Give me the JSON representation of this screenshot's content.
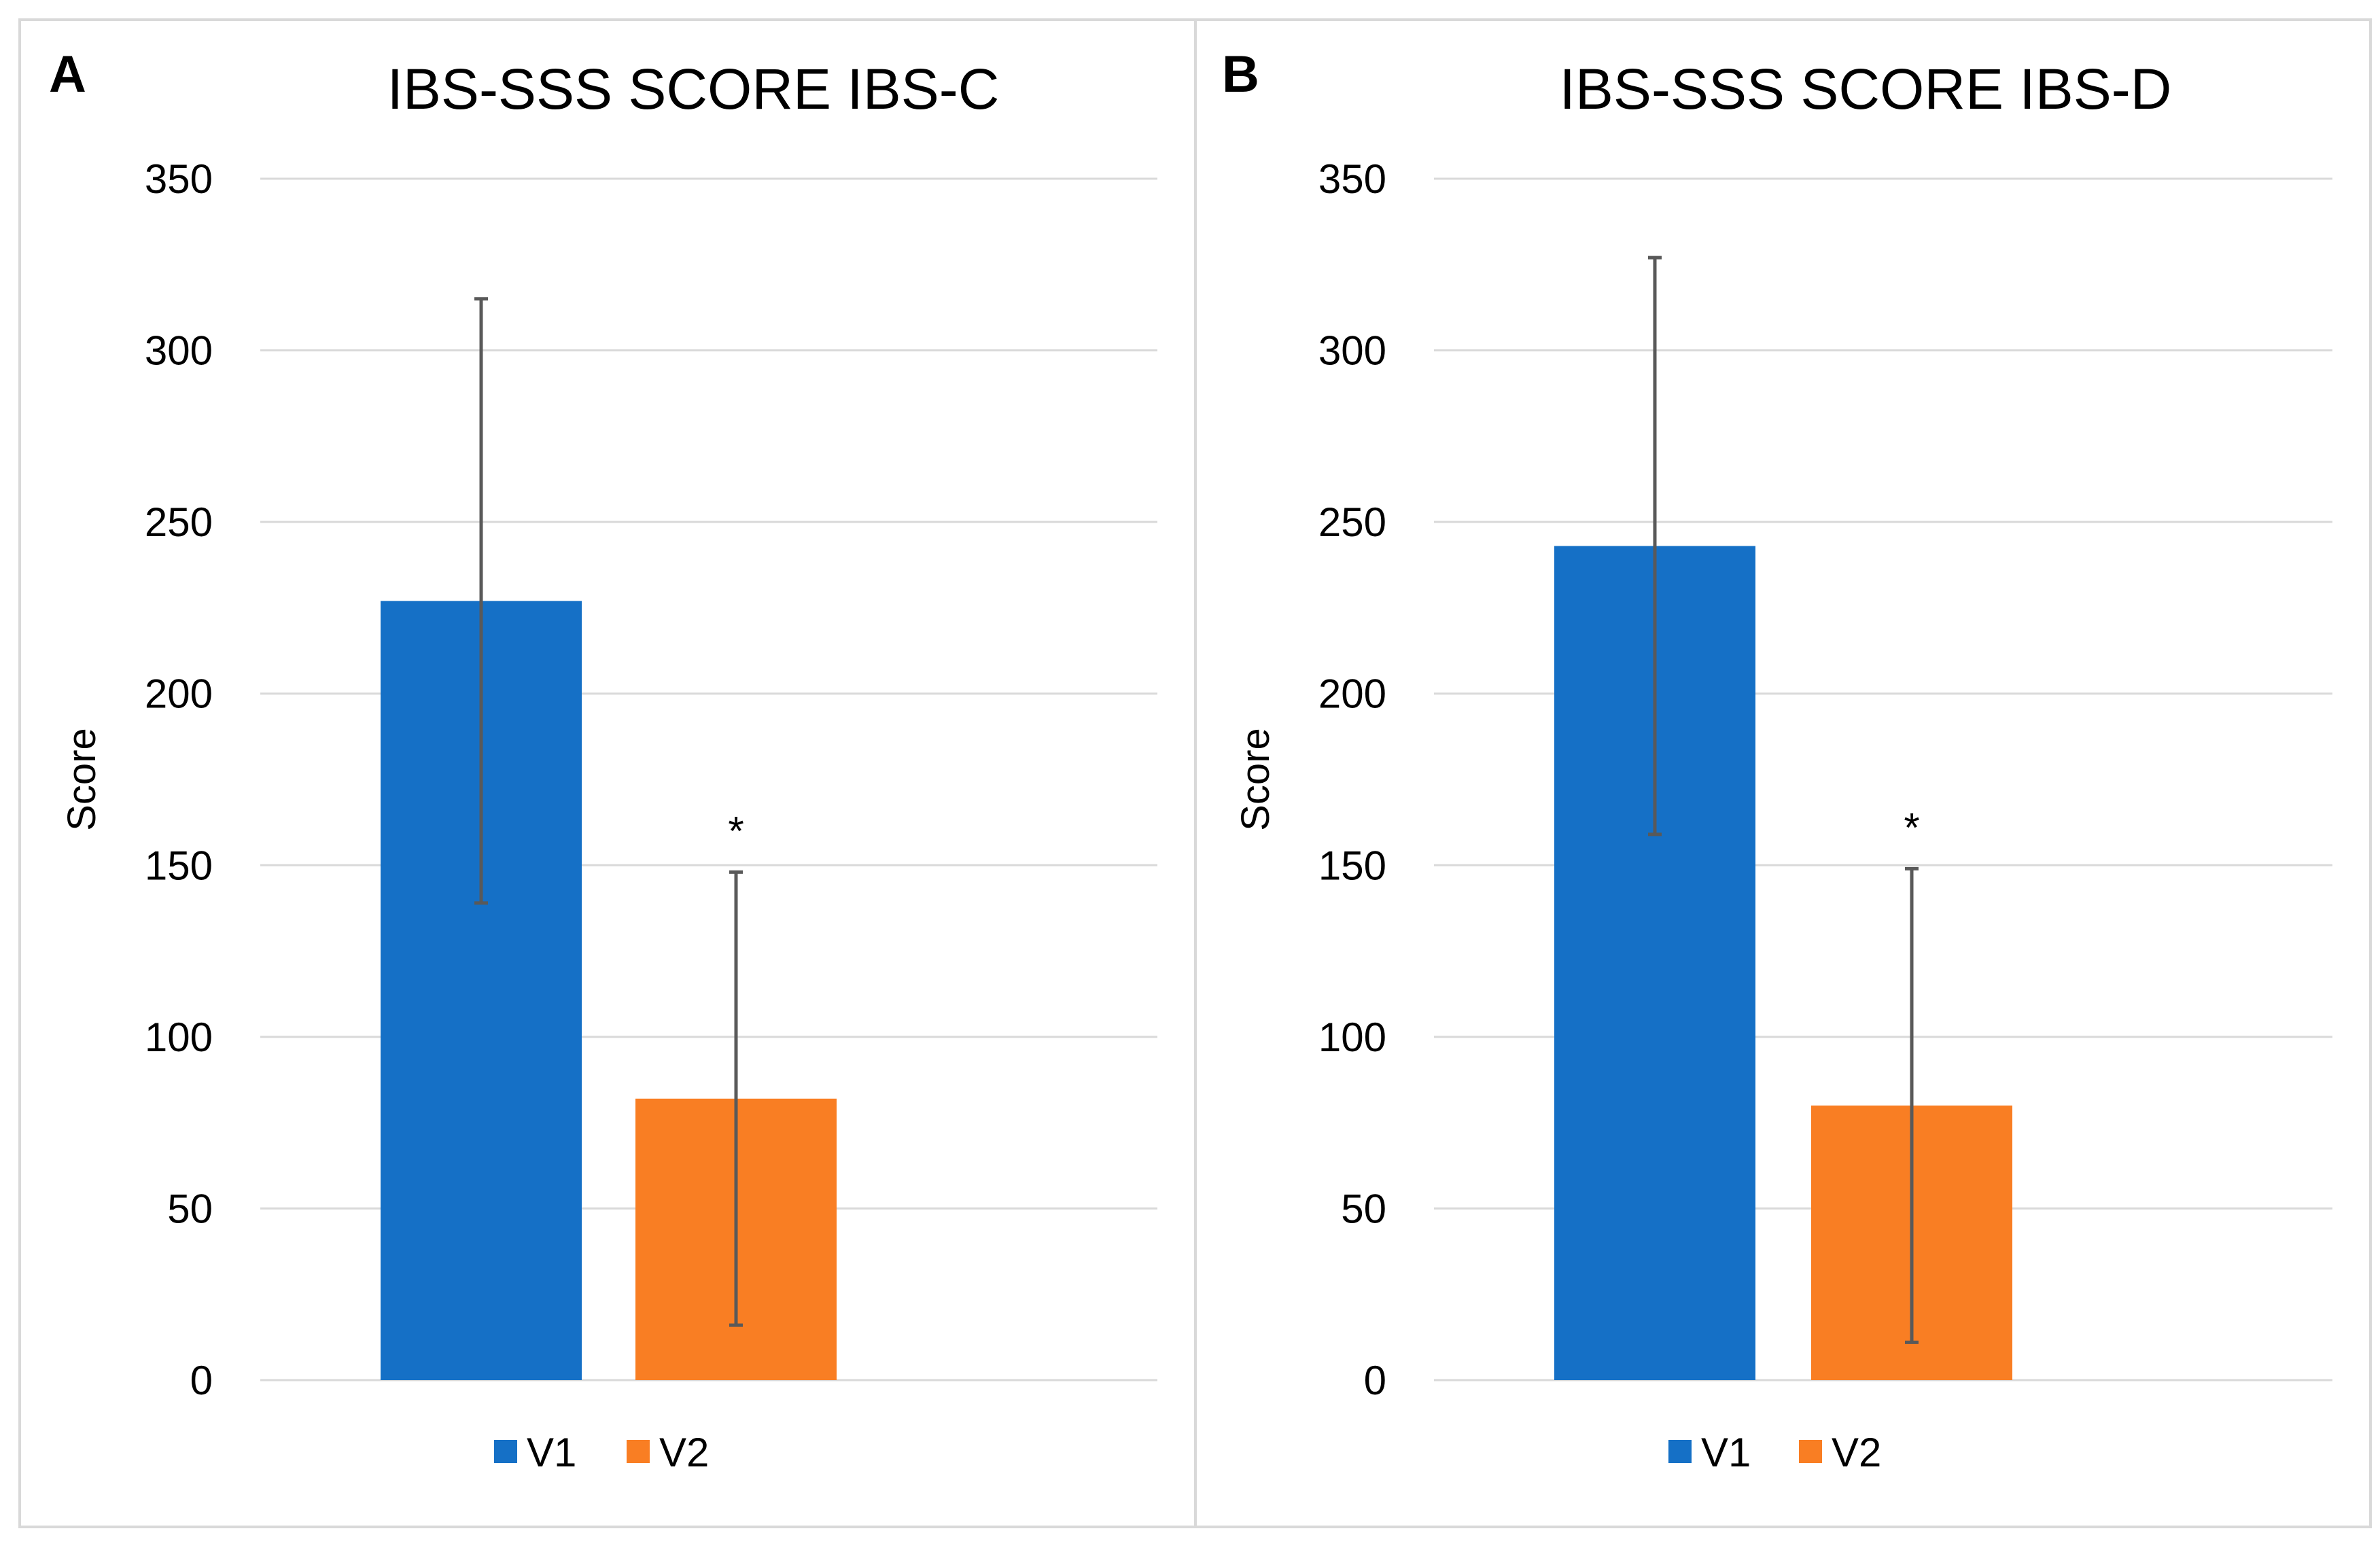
{
  "chart_data": [
    {
      "type": "bar",
      "panel_label": "A",
      "title": "IBS-SSS SCORE IBS-C",
      "xlabel": "",
      "ylabel": "Score",
      "ylim": [
        0,
        350
      ],
      "yticks": [
        "0",
        "50",
        "100",
        "150",
        "200",
        "250",
        "300",
        "350"
      ],
      "grid": true,
      "legend": "bottom",
      "series": [
        {
          "name": "V1",
          "color": "#1570c6",
          "value": 227,
          "error": 88
        },
        {
          "name": "V2",
          "color": "#f97e23",
          "value": 82,
          "error": 66,
          "annotation": "*"
        }
      ]
    },
    {
      "type": "bar",
      "panel_label": "B",
      "title": "IBS-SSS SCORE IBS-D",
      "xlabel": "",
      "ylabel": "Score",
      "ylim": [
        0,
        350
      ],
      "yticks": [
        "0",
        "50",
        "100",
        "150",
        "200",
        "250",
        "300",
        "350"
      ],
      "grid": true,
      "legend": "bottom",
      "series": [
        {
          "name": "V1",
          "color": "#1570c6",
          "value": 243,
          "error": 84
        },
        {
          "name": "V2",
          "color": "#f97e23",
          "value": 80,
          "error": 69,
          "annotation": "*"
        }
      ]
    }
  ]
}
